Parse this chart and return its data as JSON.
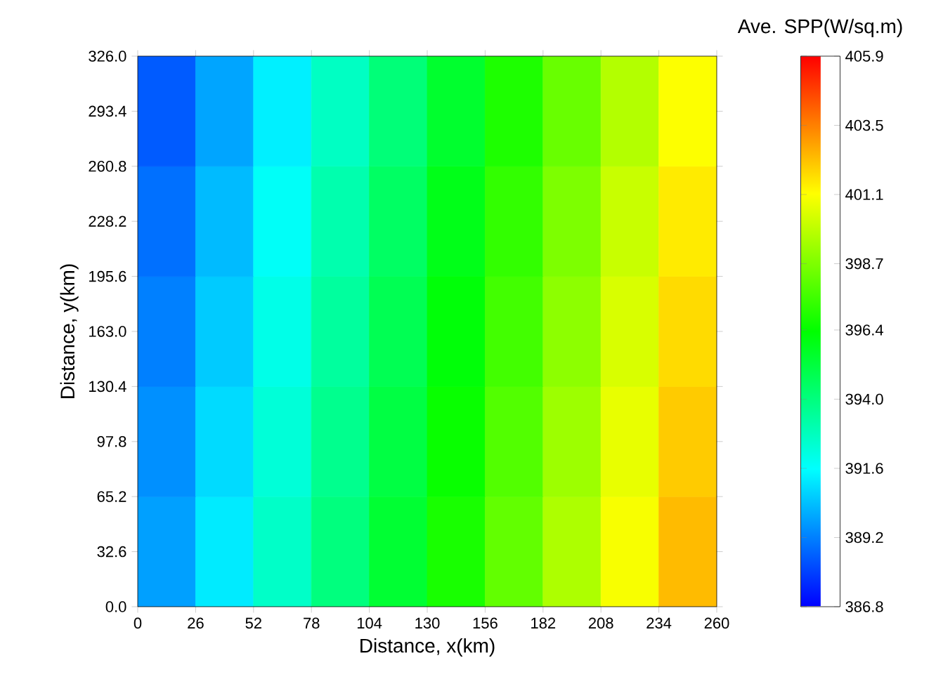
{
  "chart_data": {
    "type": "heatmap",
    "xlabel": "Distance, x(km)",
    "ylabel": "Distance, y(km)",
    "clabel": "Ave. SPP(W/sq.m)",
    "xlim": [
      0,
      260
    ],
    "xticks": [
      0,
      26,
      52,
      78,
      104,
      130,
      156,
      182,
      208,
      234,
      260
    ],
    "ylim": [
      0,
      326
    ],
    "yticks": [
      {
        "value": 0,
        "label": "0.0"
      },
      32.6,
      65.2,
      97.8,
      130.4,
      {
        "value": 163,
        "label": "163.0"
      },
      195.6,
      228.2,
      260.8,
      293.4,
      {
        "value": 326,
        "label": "326.0"
      }
    ],
    "clim": [
      386.8,
      405.9
    ],
    "cticks": [
      386.8,
      389.2,
      391.6,
      {
        "value": 394,
        "label": "394.0"
      },
      396.4,
      398.7,
      401.1,
      403.5,
      405.9
    ],
    "cells": [
      [
        388.5,
        389.9,
        391.3,
        392.7,
        394.1,
        395.5,
        396.9,
        398.3,
        399.7,
        401.1
      ],
      [
        388.9,
        390.3,
        391.7,
        393.1,
        394.5,
        395.9,
        397.3,
        398.7,
        400.1,
        401.5
      ],
      [
        389.2,
        390.6,
        392.0,
        393.4,
        394.8,
        396.2,
        397.6,
        399.0,
        400.4,
        401.8
      ],
      [
        389.5,
        390.9,
        392.3,
        393.7,
        395.1,
        396.5,
        397.9,
        399.3,
        400.7,
        402.1
      ],
      [
        389.8,
        391.2,
        392.6,
        394.0,
        395.4,
        396.8,
        398.2,
        399.6,
        401.0,
        402.4
      ]
    ]
  }
}
